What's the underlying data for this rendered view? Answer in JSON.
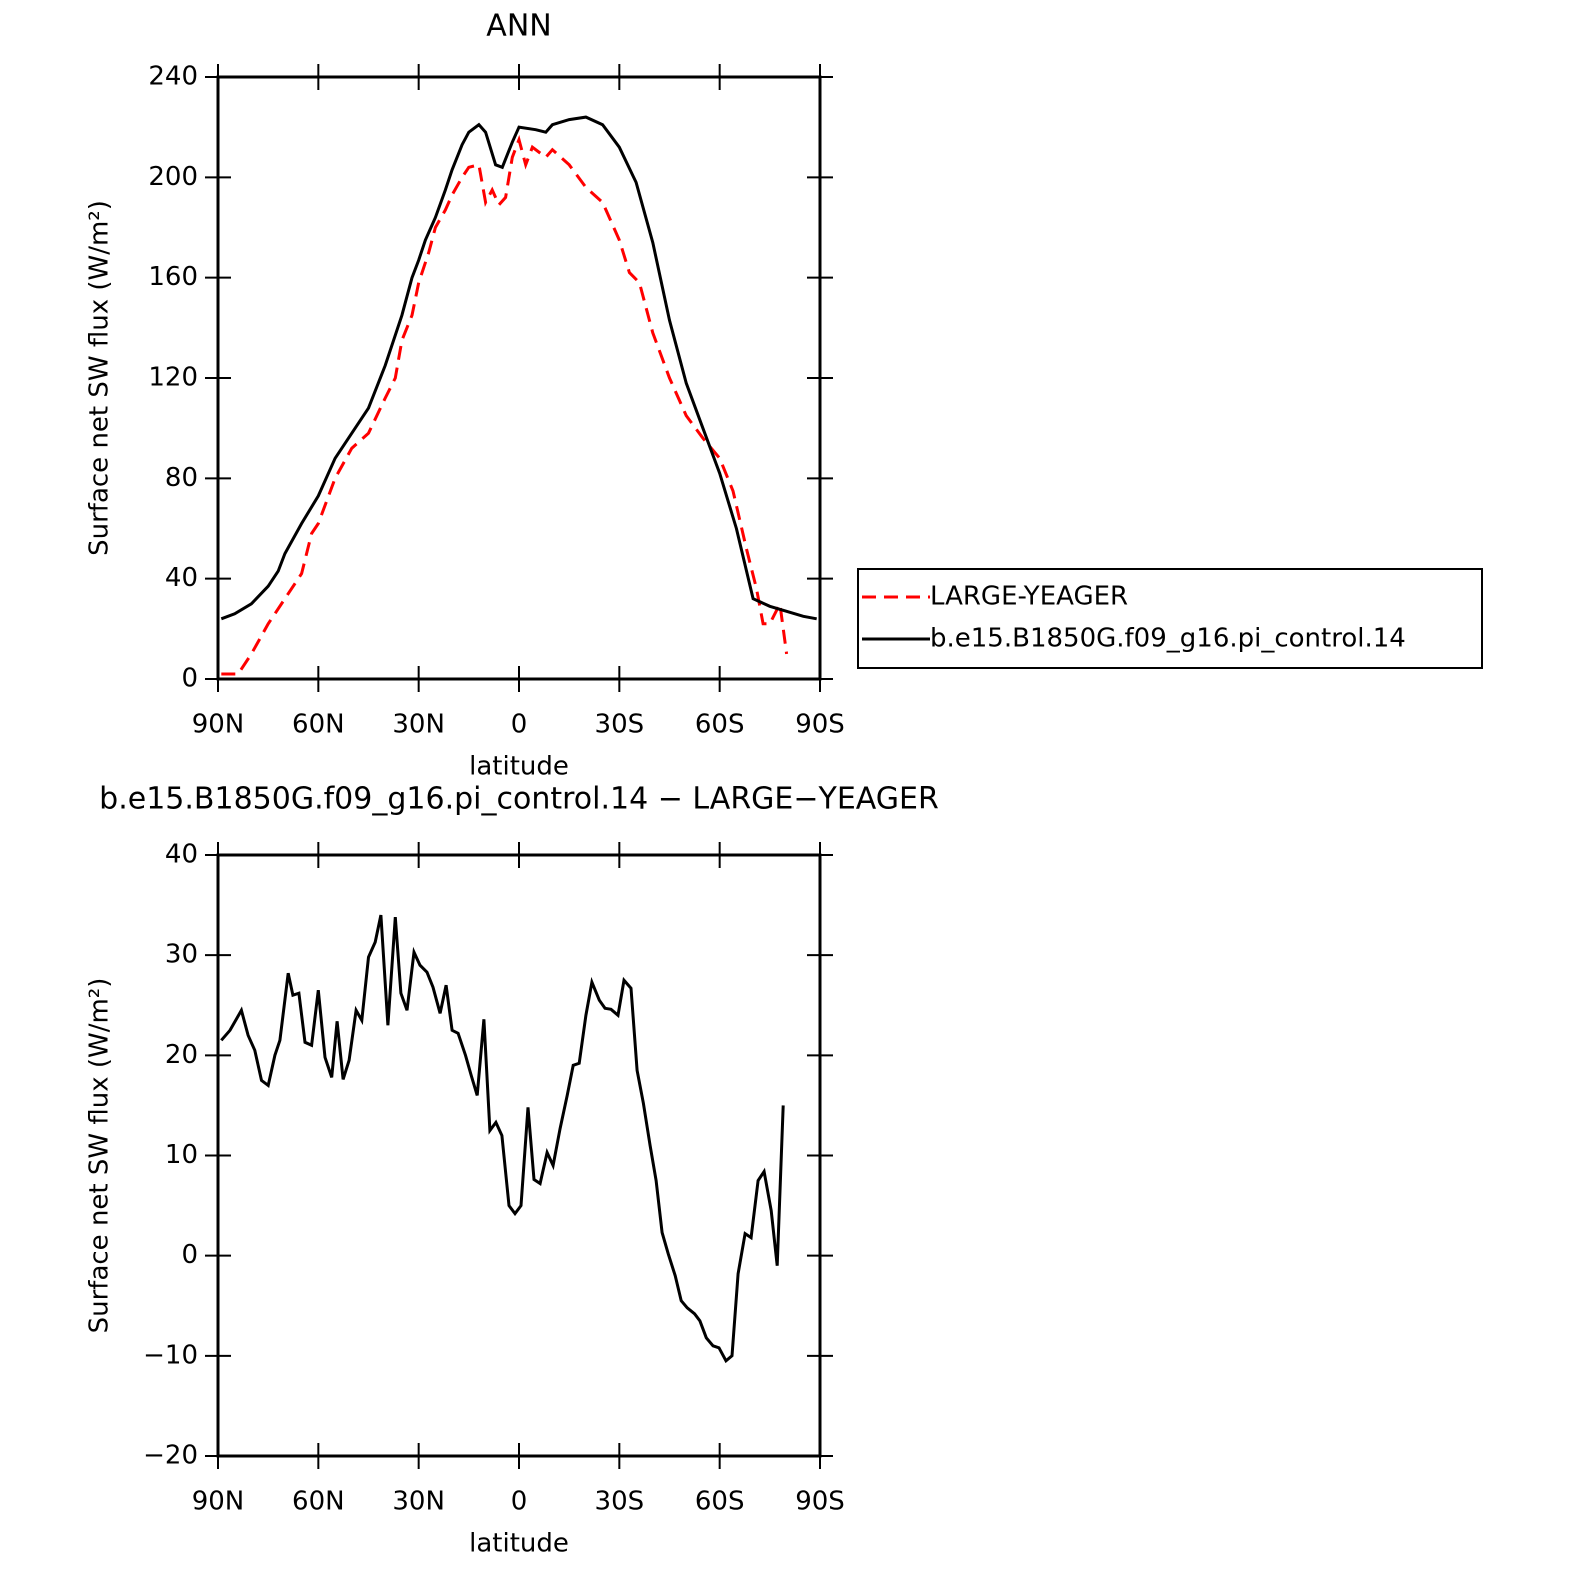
{
  "chart_data": [
    {
      "type": "line",
      "title": "ANN",
      "xlabel": "latitude",
      "ylabel": "Surface net SW flux (W/m²)",
      "xlim": [
        90,
        -90
      ],
      "xticks": [
        {
          "value": 90,
          "label": "90N"
        },
        {
          "value": 60,
          "label": "60N"
        },
        {
          "value": 30,
          "label": "30N"
        },
        0,
        {
          "value": -30,
          "label": "30S"
        },
        {
          "value": -60,
          "label": "60S"
        },
        {
          "value": -90,
          "label": "90S"
        }
      ],
      "ylim": [
        0,
        240
      ],
      "yticks": [
        0,
        40,
        80,
        120,
        160,
        200,
        240
      ],
      "legend": "right",
      "series": [
        {
          "name": "LARGE-YEAGER",
          "color": "#ff0000",
          "line_style": "dashed",
          "x": [
            89,
            84,
            80,
            75,
            70,
            65,
            62,
            60,
            55,
            50,
            45,
            40,
            37,
            35,
            32,
            30,
            27,
            25,
            22,
            20,
            17,
            15,
            12,
            10,
            8,
            6,
            4,
            2,
            0,
            -2,
            -4,
            -8,
            -10,
            -15,
            -20,
            -25,
            -30,
            -33,
            -36,
            -40,
            -45,
            -50,
            -55,
            -60,
            -64,
            -68,
            -71,
            -73,
            -75,
            -78,
            -80
          ],
          "values": [
            2,
            2,
            10,
            22,
            32,
            42,
            58,
            62,
            80,
            92,
            98,
            112,
            120,
            135,
            145,
            158,
            170,
            180,
            187,
            193,
            200,
            204,
            205,
            190,
            195,
            189,
            192,
            208,
            215,
            205,
            212,
            208,
            211,
            205,
            196,
            190,
            175,
            162,
            158,
            138,
            120,
            105,
            96,
            88,
            75,
            52,
            36,
            22,
            22,
            30,
            10
          ]
        },
        {
          "name": "b.e15.B1850G.f09_g16.pi_control.14",
          "color": "#000000",
          "line_style": "solid",
          "x": [
            89,
            85,
            80,
            75,
            72,
            70,
            65,
            60,
            55,
            50,
            45,
            40,
            35,
            32,
            30,
            28,
            25,
            22,
            20,
            17,
            15,
            12,
            10,
            7,
            5,
            2,
            0,
            -5,
            -8,
            -10,
            -15,
            -20,
            -25,
            -30,
            -35,
            -40,
            -45,
            -50,
            -55,
            -60,
            -65,
            -70,
            -75,
            -80,
            -85,
            -89
          ],
          "values": [
            24,
            26,
            30,
            37,
            43,
            50,
            62,
            73,
            88,
            98,
            108,
            125,
            145,
            160,
            167,
            175,
            184,
            195,
            203,
            213,
            218,
            221,
            218,
            205,
            204,
            214,
            220,
            219,
            218,
            221,
            223,
            224,
            221,
            212,
            198,
            174,
            143,
            118,
            100,
            82,
            60,
            32,
            29,
            27,
            25,
            24
          ]
        }
      ]
    },
    {
      "type": "line",
      "title": "b.e15.B1850G.f09_g16.pi_control.14 − LARGE−YEAGER",
      "xlabel": "latitude",
      "ylabel": "Surface net SW flux (W/m²)",
      "xlim": [
        90,
        -90
      ],
      "xticks": [
        {
          "value": 90,
          "label": "90N"
        },
        {
          "value": 60,
          "label": "60N"
        },
        {
          "value": 30,
          "label": "30N"
        },
        0,
        {
          "value": -30,
          "label": "30S"
        },
        {
          "value": -60,
          "label": "60S"
        },
        {
          "value": -90,
          "label": "90S"
        }
      ],
      "ylim": [
        -20,
        40
      ],
      "yticks": [
        {
          "value": -20,
          "label": "−20"
        },
        {
          "value": -10,
          "label": "−10"
        },
        0,
        10,
        20,
        30,
        40
      ],
      "series": [
        {
          "color": "#000000",
          "line_style": "solid",
          "x": [
            89,
            86.4,
            83,
            81,
            79,
            77,
            75,
            73,
            71.5,
            69,
            67.6,
            65.8,
            64,
            62,
            60,
            58,
            56,
            54.4,
            52.6,
            50.8,
            48.7,
            47,
            45,
            43,
            41.3,
            39.2,
            37,
            35.3,
            33.5,
            31.4,
            29.6,
            27.5,
            25.7,
            23.6,
            21.8,
            20,
            18.2,
            16,
            14.3,
            12.5,
            10.5,
            8.7,
            6.9,
            5.1,
            3,
            1.2,
            -0.6,
            -2.7,
            -4.5,
            -6.3,
            -8.4,
            -10.2,
            -12.3,
            -14.4,
            -16.2,
            -18,
            -20,
            -21.8,
            -24,
            -25.7,
            -27.5,
            -29.6,
            -31.4,
            -33.5,
            -35.3,
            -37.2,
            -39.2,
            -41,
            -42.8,
            -44.6,
            -46.7,
            -48.5,
            -50.3,
            -52.5,
            -54.1,
            -56,
            -58,
            -59.8,
            -61.9,
            -63.7,
            -65.5,
            -67.6,
            -69.4,
            -71.5,
            -73.3,
            -75.4,
            -77.2,
            -79
          ],
          "values": [
            21.5,
            22.5,
            24.5,
            22,
            20.5,
            17.5,
            17,
            20,
            21.5,
            28.2,
            26,
            26.2,
            21.3,
            21,
            26.5,
            19.8,
            17.8,
            23.4,
            17.6,
            19.5,
            24.5,
            23.5,
            29.8,
            31.3,
            34,
            23,
            33.8,
            26.2,
            24.5,
            30.3,
            29,
            28.3,
            26.8,
            24.2,
            27,
            22.5,
            22.2,
            20,
            18,
            16,
            23.6,
            12.5,
            13.3,
            12,
            5,
            4.2,
            5,
            14.8,
            7.6,
            7.2,
            10.3,
            9,
            12.7,
            16,
            19,
            19.2,
            24,
            27.3,
            25.5,
            24.7,
            24.6,
            24,
            27.5,
            26.7,
            18.5,
            15.2,
            11,
            7.5,
            2.3,
            0.2,
            -2,
            -4.5,
            -5.2,
            -5.8,
            -6.5,
            -8.2,
            -9,
            -9.2,
            -10.5,
            -10,
            -1.8,
            2.2,
            1.8,
            7.5,
            8.4,
            4.5,
            -1,
            15
          ]
        }
      ]
    }
  ]
}
